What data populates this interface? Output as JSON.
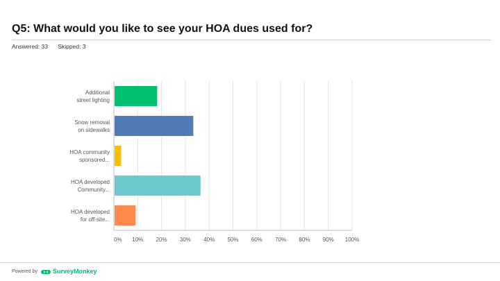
{
  "question": {
    "title": "Q5: What would you like to see your HOA dues used for?",
    "answered": "Answered: 33",
    "skipped": "Skipped: 3"
  },
  "footer": {
    "powered_by": "Powered by",
    "brand": "SurveyMonkey"
  },
  "chart_data": {
    "type": "bar",
    "orientation": "horizontal",
    "categories": [
      [
        "Additional",
        "street lighting"
      ],
      [
        "Snow removal",
        "on sidewalks"
      ],
      [
        "HOA community",
        "sponsored..."
      ],
      [
        "HOA developed",
        "Community..."
      ],
      [
        "HOA developed",
        "for off-site..."
      ]
    ],
    "values": [
      18.18,
      33.33,
      3.03,
      36.36,
      9.09
    ],
    "colors": [
      "#00bf6f",
      "#507cb6",
      "#f9be00",
      "#6bc8cd",
      "#ff8b4f"
    ],
    "xlim": [
      0,
      100
    ],
    "xticks": [
      "0%",
      "10%",
      "20%",
      "30%",
      "40%",
      "50%",
      "60%",
      "70%",
      "80%",
      "90%",
      "100%"
    ],
    "grid": true
  }
}
